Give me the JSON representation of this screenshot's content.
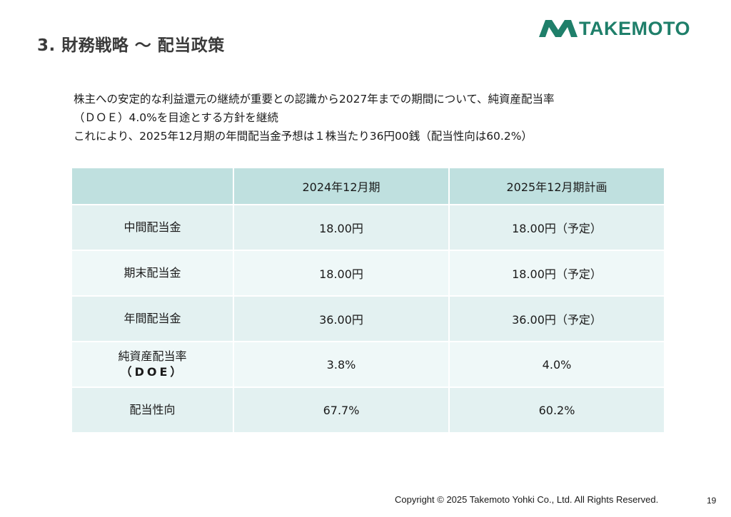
{
  "slide": {
    "title": "3. 財務戦略 ～ 配当政策",
    "page_number": "19",
    "copyright": "Copyright © 2025 Takemoto Yohki Co., Ltd. All Rights Reserved."
  },
  "logo": {
    "text": "TAKEMOTO",
    "icon": "takemoto-mark-icon",
    "color": "#1f7f6a"
  },
  "intro": {
    "lines": [
      "株主への安定的な利益還元の継続が重要との認識から2027年までの期間について、純資産配当率",
      "（ＤＯＥ）4.0%を目途とする方針を継続",
      "これにより、2025年12月期の年間配当金予想は１株当たり36円00銭（配当性向は60.2%）"
    ]
  },
  "table": {
    "headers": [
      "",
      "2024年12月期",
      "2025年12月期計画"
    ],
    "rows": [
      {
        "label": "中間配当金",
        "label_sub": "",
        "values": [
          "18.00円",
          "18.00円（予定）"
        ]
      },
      {
        "label": "期末配当金",
        "label_sub": "",
        "values": [
          "18.00円",
          "18.00円（予定）"
        ]
      },
      {
        "label": "年間配当金",
        "label_sub": "",
        "values": [
          "36.00円",
          "36.00円（予定）"
        ]
      },
      {
        "label": "純資産配当率",
        "label_sub": "（DOE）",
        "values": [
          "3.8%",
          "4.0%"
        ]
      },
      {
        "label": "配当性向",
        "label_sub": "",
        "values": [
          "67.7%",
          "60.2%"
        ]
      }
    ],
    "colors": {
      "header_bg": "#bfe0df",
      "row_bg_a": "#e3f1f1",
      "row_bg_b": "#eff8f8"
    }
  }
}
